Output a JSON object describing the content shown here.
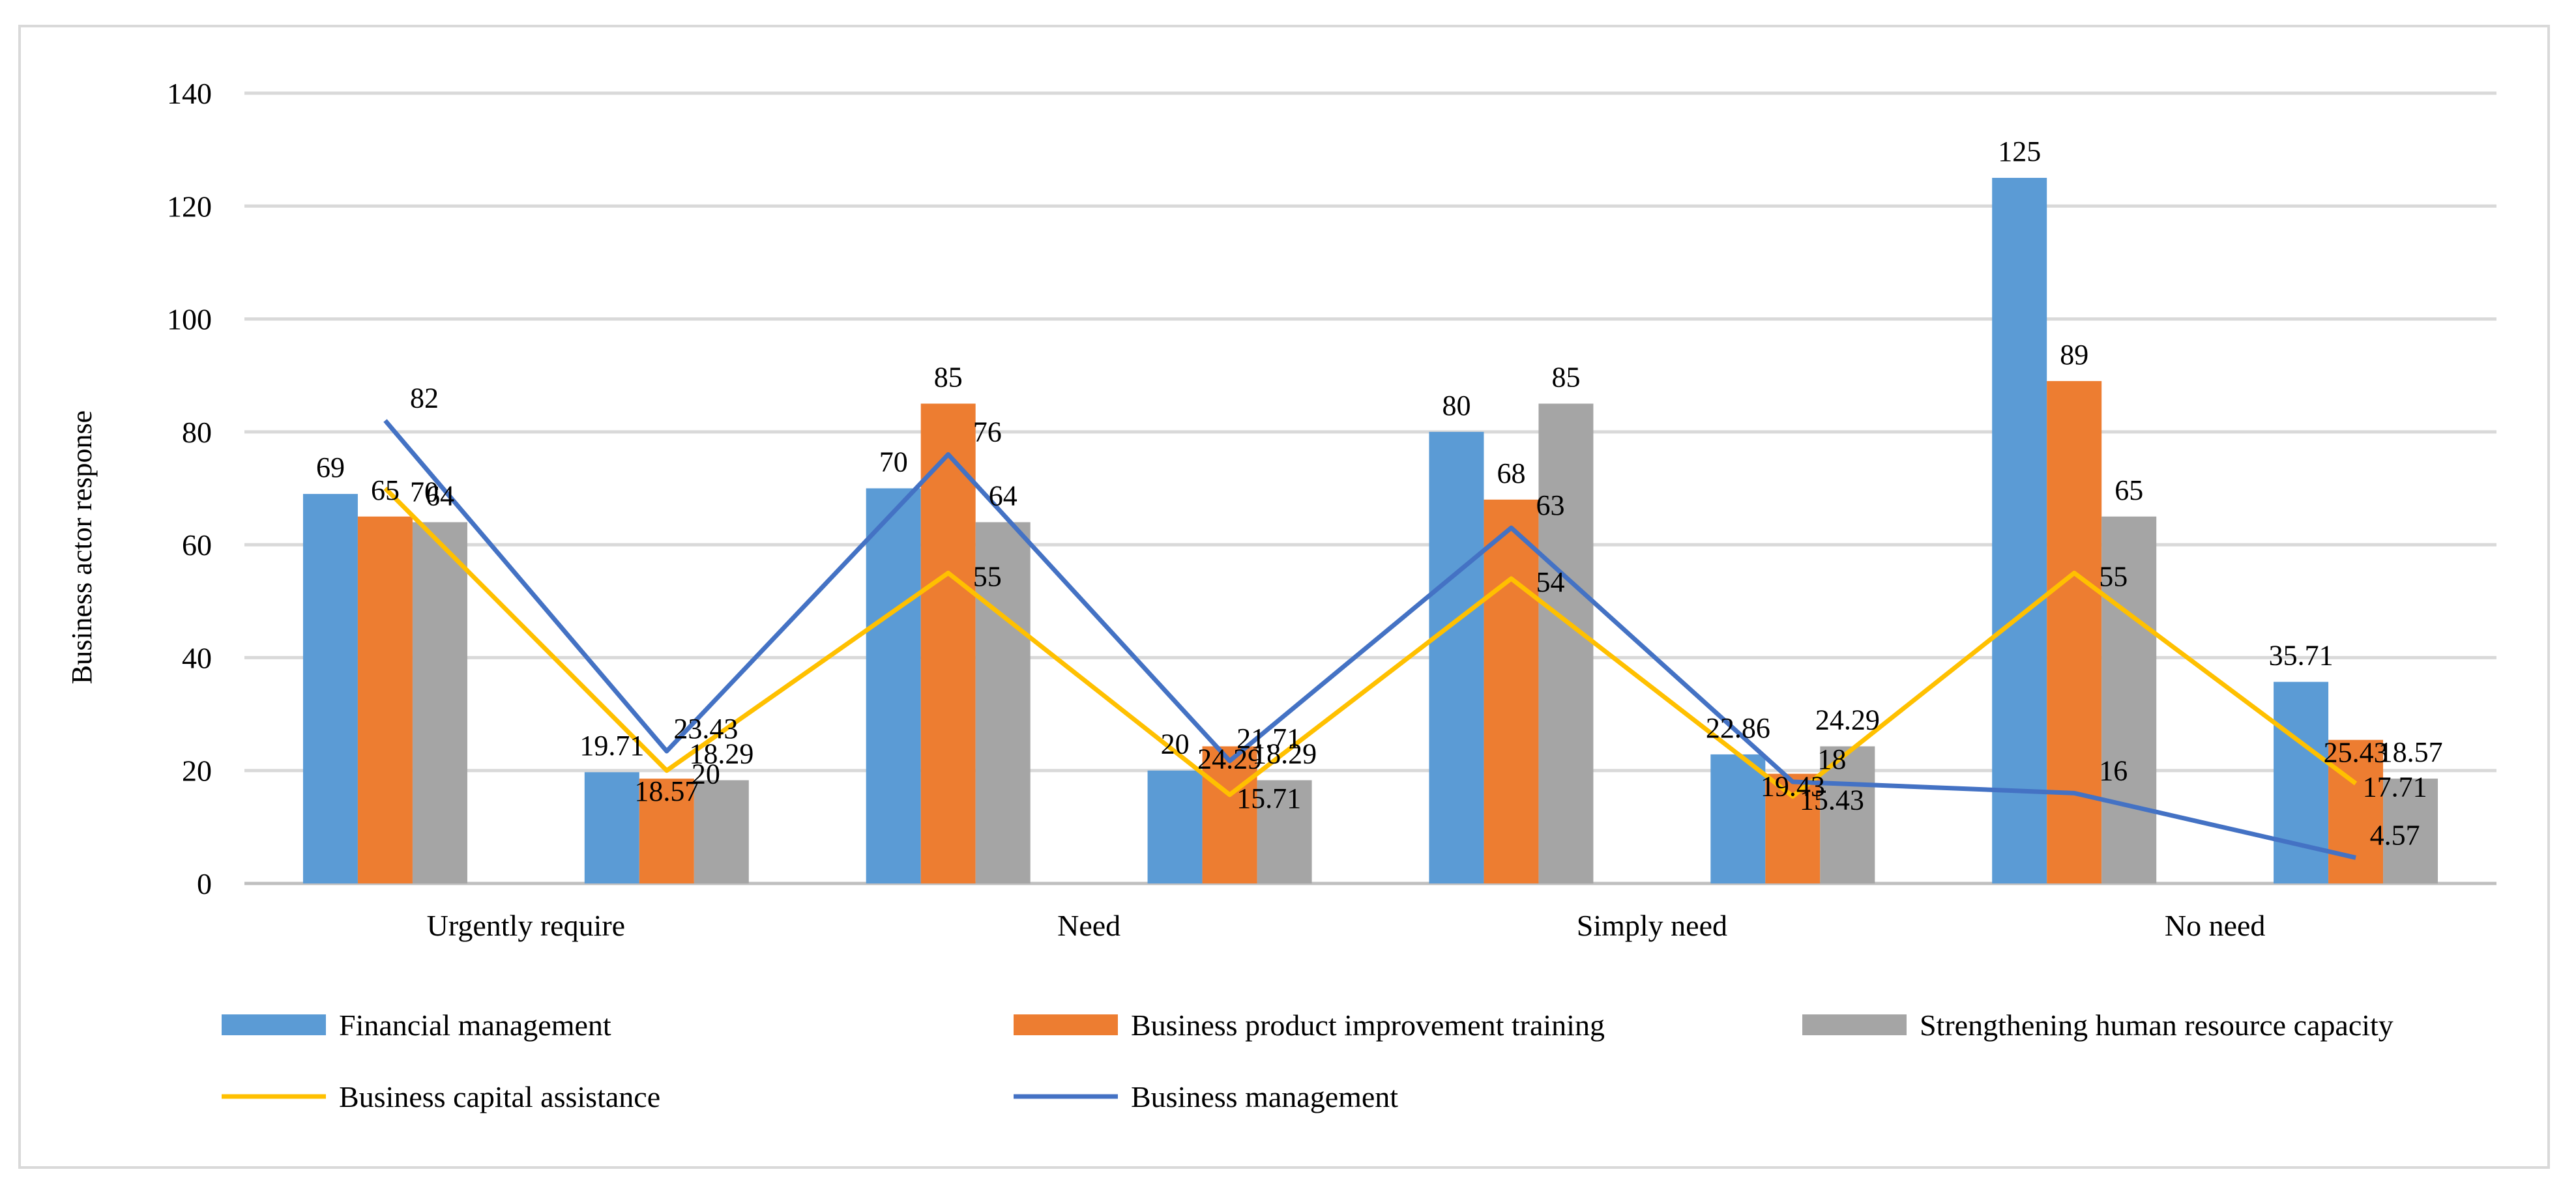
{
  "chart_data": {
    "type": "bar",
    "title": "",
    "xlabel": "",
    "ylabel": "Business actor response",
    "ylim": [
      0,
      140
    ],
    "yticks": [
      0,
      20,
      40,
      60,
      80,
      100,
      120,
      140
    ],
    "grid": true,
    "legend_position": "bottom",
    "categories": [
      "Urgently require",
      "",
      "Need",
      "",
      "Simply need",
      "",
      "No need",
      ""
    ],
    "series": [
      {
        "name": "Financial management",
        "kind": "bar",
        "color": "#5b9bd5",
        "values": [
          69,
          19.71,
          70,
          20,
          80,
          22.86,
          125,
          35.71
        ]
      },
      {
        "name": "Business product improvement training",
        "kind": "bar",
        "color": "#ed7d31",
        "values": [
          65,
          18.57,
          85,
          24.29,
          68,
          19.43,
          89,
          25.43
        ]
      },
      {
        "name": "Strengthening human resource capacity",
        "kind": "bar",
        "color": "#a5a5a5",
        "values": [
          64,
          18.29,
          64,
          18.29,
          85,
          24.29,
          65,
          18.57
        ]
      },
      {
        "name": "Business capital assistance",
        "kind": "line",
        "color": "#ffc000",
        "values": [
          70,
          20,
          55,
          15.71,
          54,
          15.43,
          55,
          17.71
        ]
      },
      {
        "name": "Business management",
        "kind": "line",
        "color": "#4472c4",
        "values": [
          82,
          23.43,
          76,
          21.71,
          63,
          18,
          16,
          4.57
        ]
      }
    ],
    "data_labels": [
      {
        "text": "69",
        "cat": 0,
        "series": 0
      },
      {
        "text": "65",
        "cat": 0,
        "series": 1
      },
      {
        "text": "70",
        "cat": 0,
        "series": 3
      },
      {
        "text": "64",
        "cat": 0,
        "series": 2
      },
      {
        "text": "82",
        "cat": 0,
        "series": 4
      },
      {
        "text": "19.71",
        "cat": 1,
        "series": 0
      },
      {
        "text": "18.57",
        "cat": 1,
        "series": 1
      },
      {
        "text": "18.29",
        "cat": 1,
        "series": 2
      },
      {
        "text": "20",
        "cat": 1,
        "series": 3
      },
      {
        "text": "23.43",
        "cat": 1,
        "series": 4
      },
      {
        "text": "70",
        "cat": 2,
        "series": 0
      },
      {
        "text": "85",
        "cat": 2,
        "series": 1
      },
      {
        "text": "76",
        "cat": 2,
        "series": 4
      },
      {
        "text": "64",
        "cat": 2,
        "series": 2
      },
      {
        "text": "55",
        "cat": 2,
        "series": 3
      },
      {
        "text": "20",
        "cat": 3,
        "series": 0
      },
      {
        "text": "24.29",
        "cat": 3,
        "series": 1
      },
      {
        "text": "18.29",
        "cat": 3,
        "series": 2
      },
      {
        "text": "21.71",
        "cat": 3,
        "series": 4
      },
      {
        "text": "15.71",
        "cat": 3,
        "series": 3
      },
      {
        "text": "80",
        "cat": 4,
        "series": 0
      },
      {
        "text": "68",
        "cat": 4,
        "series": 1
      },
      {
        "text": "85",
        "cat": 4,
        "series": 2
      },
      {
        "text": "63",
        "cat": 4,
        "series": 4
      },
      {
        "text": "54",
        "cat": 4,
        "series": 3
      },
      {
        "text": "22.86",
        "cat": 5,
        "series": 0
      },
      {
        "text": "19.43",
        "cat": 5,
        "series": 1
      },
      {
        "text": "24.29",
        "cat": 5,
        "series": 2
      },
      {
        "text": "18",
        "cat": 5,
        "series": 4
      },
      {
        "text": "15.43",
        "cat": 5,
        "series": 3
      },
      {
        "text": "125",
        "cat": 6,
        "series": 0
      },
      {
        "text": "89",
        "cat": 6,
        "series": 1
      },
      {
        "text": "65",
        "cat": 6,
        "series": 2
      },
      {
        "text": "55",
        "cat": 6,
        "series": 3
      },
      {
        "text": "16",
        "cat": 6,
        "series": 4
      },
      {
        "text": "35.71",
        "cat": 7,
        "series": 0
      },
      {
        "text": "25.43",
        "cat": 7,
        "series": 1
      },
      {
        "text": "18.57",
        "cat": 7,
        "series": 2
      },
      {
        "text": "17.71",
        "cat": 7,
        "series": 3
      },
      {
        "text": "4.57",
        "cat": 7,
        "series": 4
      }
    ]
  }
}
